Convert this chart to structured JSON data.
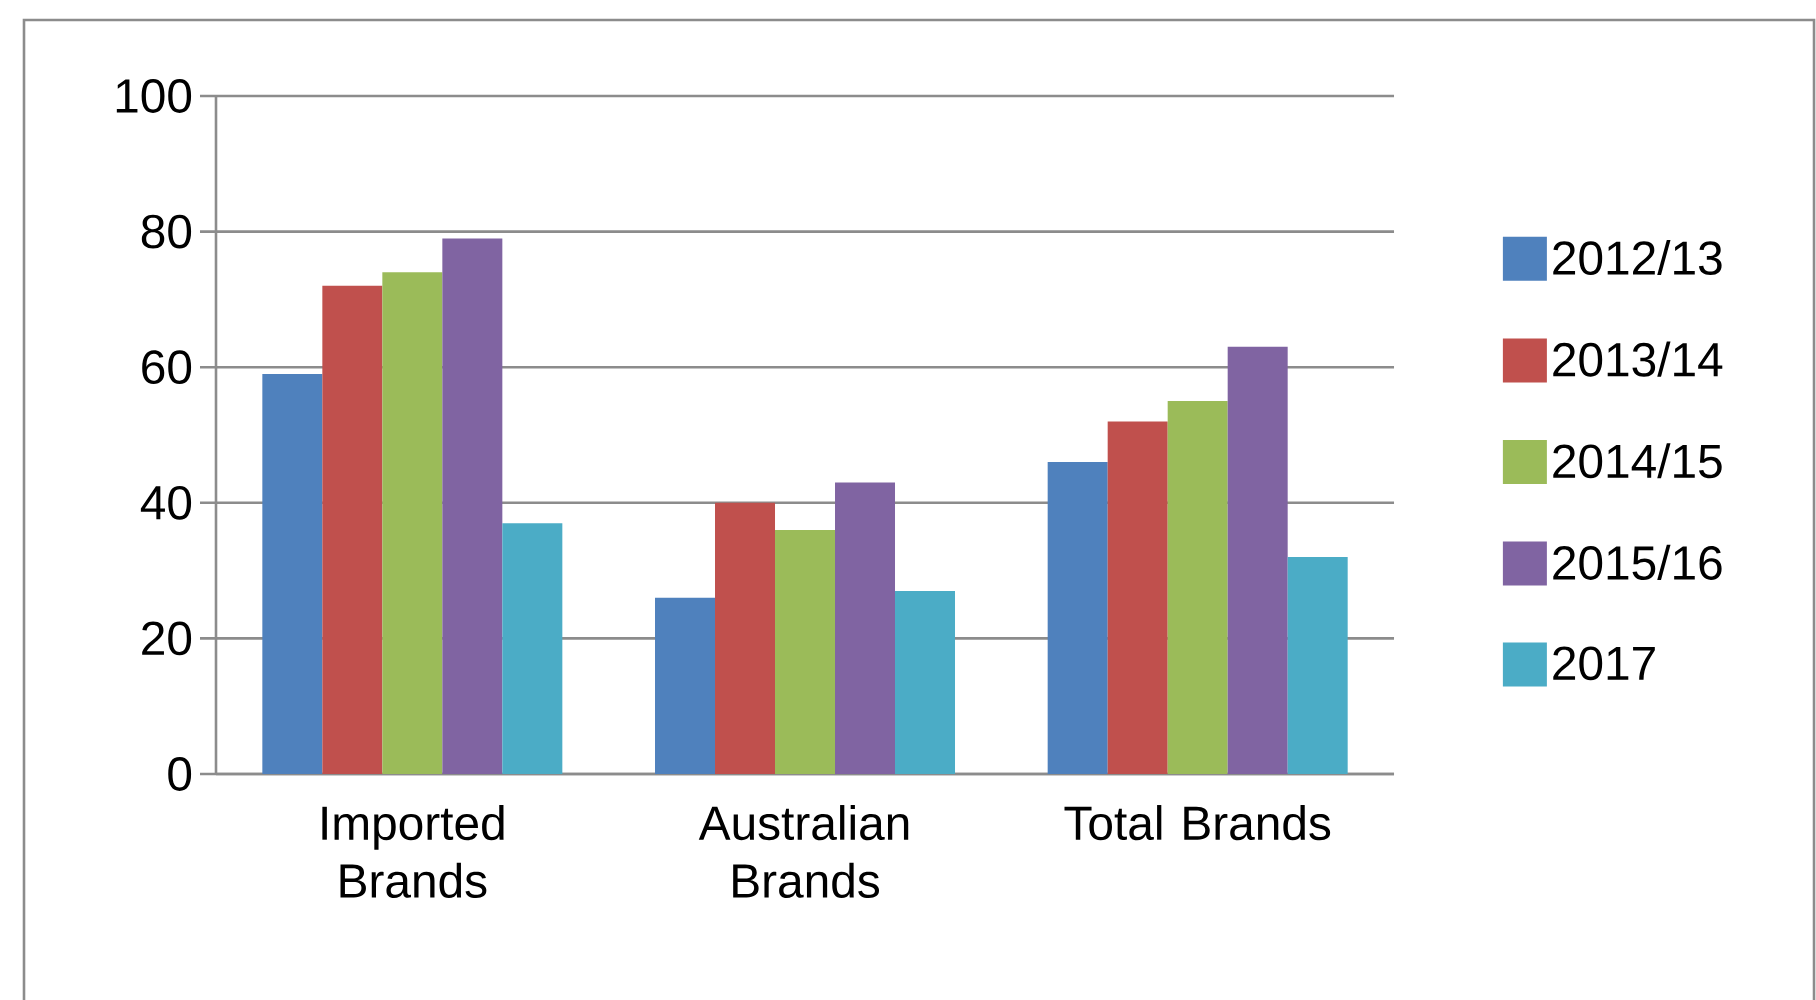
{
  "chart_data": {
    "type": "bar",
    "categories": [
      "Imported Brands",
      "Australian Brands",
      "Total Brands"
    ],
    "series": [
      {
        "name": "2012/13",
        "color": "#4f81bd",
        "values": [
          59,
          26,
          46
        ]
      },
      {
        "name": "2013/14",
        "color": "#c0504d",
        "values": [
          72,
          40,
          52
        ]
      },
      {
        "name": "2014/15",
        "color": "#9bbb59",
        "values": [
          74,
          36,
          55
        ]
      },
      {
        "name": "2015/16",
        "color": "#8064a2",
        "values": [
          79,
          43,
          63
        ]
      },
      {
        "name": "2017",
        "color": "#4bacc6",
        "values": [
          37,
          27,
          32
        ]
      }
    ],
    "ylim": [
      0,
      100
    ],
    "yticks": [
      0,
      20,
      40,
      60,
      80,
      100
    ],
    "grid": "y",
    "legend": "right"
  }
}
